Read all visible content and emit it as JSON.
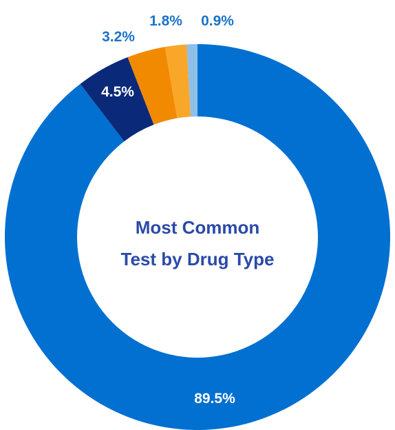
{
  "chart_data": {
    "type": "pie",
    "style": "donut",
    "title_lines": [
      "Most Common",
      "Test by Drug Type"
    ],
    "slices": [
      {
        "value": 89.5,
        "label": "89.5%",
        "color": "#0170d1",
        "label_color": "#ffffff"
      },
      {
        "value": 4.5,
        "label": "4.5%",
        "color": "#0b2979",
        "label_color": "#ffffff"
      },
      {
        "value": 3.2,
        "label": "3.2%",
        "color": "#f18a00",
        "label_color": "#1a73c9"
      },
      {
        "value": 1.8,
        "label": "1.8%",
        "color": "#f9a729",
        "label_color": "#1a73c9"
      },
      {
        "value": 0.9,
        "label": "0.9%",
        "color": "#8ebfe9",
        "label_color": "#1a73c9"
      }
    ]
  }
}
